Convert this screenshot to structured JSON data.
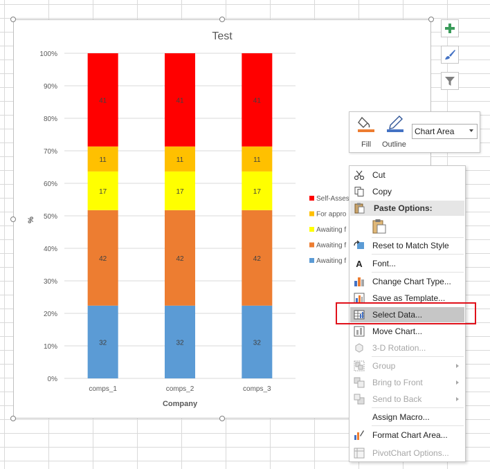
{
  "chart_data": {
    "type": "bar",
    "stacked": "100%",
    "title": "Test",
    "xlabel": "Company",
    "ylabel": "%",
    "categories": [
      "comps_1",
      "comps_2",
      "comps_3"
    ],
    "yticks": [
      "0%",
      "10%",
      "20%",
      "30%",
      "40%",
      "50%",
      "60%",
      "70%",
      "80%",
      "90%",
      "100%"
    ],
    "ylim": [
      0,
      100
    ],
    "grid": true,
    "legend_position": "right",
    "series": [
      {
        "name": "Awaiting f",
        "color": "#5b9bd5",
        "values": [
          32,
          32,
          32
        ]
      },
      {
        "name": "Awaiting f",
        "color": "#ed7d31",
        "values": [
          42,
          42,
          42
        ]
      },
      {
        "name": "Awaiting f",
        "color": "#ffff00",
        "values": [
          17,
          17,
          17
        ]
      },
      {
        "name": "For appro",
        "color": "#ffc000",
        "values": [
          11,
          11,
          11
        ]
      },
      {
        "name": "Self-Asses",
        "color": "#ff0000",
        "values": [
          41,
          41,
          41
        ]
      }
    ]
  },
  "toolbar": {
    "fill_label": "Fill",
    "outline_label": "Outline",
    "element_select_value": "Chart Area"
  },
  "side_buttons": {
    "add_element": "plus-icon",
    "styles": "brush-icon",
    "filter": "filter-icon"
  },
  "menu": {
    "cut": "Cut",
    "copy": "Copy",
    "paste_options": "Paste Options:",
    "reset": "Reset to Match Style",
    "font": "Font...",
    "change_type": "Change Chart Type...",
    "save_template": "Save as Template...",
    "select_data": "Select Data...",
    "move_chart": "Move Chart...",
    "rotation": "3-D Rotation...",
    "group": "Group",
    "bring_front": "Bring to Front",
    "send_back": "Send to Back",
    "assign_macro": "Assign Macro...",
    "format_area": "Format Chart Area...",
    "pivot_options": "PivotChart Options..."
  },
  "colors": {
    "highlight_box": "#e0101a",
    "accent_green": "#70ad47"
  }
}
